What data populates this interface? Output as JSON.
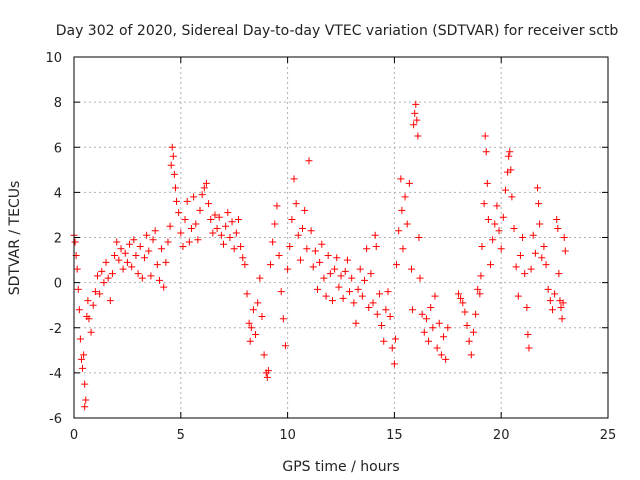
{
  "chart_data": {
    "type": "scatter",
    "title": "Day 302 of 2020, Sidereal Day-to-day VTEC variation (SDTVAR) for receiver sctb",
    "xlabel": "GPS time / hours",
    "ylabel": "SDTVAR / TECUs",
    "xlim": [
      0,
      25
    ],
    "ylim": [
      -6,
      10
    ],
    "x_ticks": [
      0,
      5,
      10,
      15,
      20,
      25
    ],
    "y_ticks": [
      -6,
      -4,
      -2,
      0,
      2,
      4,
      6,
      8,
      10
    ],
    "x_tick_labels": [
      "0",
      "5",
      "10",
      "15",
      "20",
      "25"
    ],
    "y_tick_labels": [
      "-6",
      "-4",
      "-2",
      "0",
      "2",
      "4",
      "6",
      "8",
      "10"
    ],
    "grid": true,
    "marker": "+",
    "series": [
      {
        "name": "SDTVAR sctb",
        "color": "#ff0000",
        "points": [
          [
            0.0,
            2.1
          ],
          [
            0.05,
            1.8
          ],
          [
            0.1,
            1.2
          ],
          [
            0.15,
            0.6
          ],
          [
            0.2,
            -0.3
          ],
          [
            0.25,
            -1.2
          ],
          [
            0.3,
            -2.5
          ],
          [
            0.35,
            -3.4
          ],
          [
            0.4,
            -3.8
          ],
          [
            0.45,
            -3.2
          ],
          [
            0.5,
            -4.5
          ],
          [
            0.5,
            -5.5
          ],
          [
            0.55,
            -5.2
          ],
          [
            0.6,
            -1.5
          ],
          [
            0.65,
            -0.8
          ],
          [
            0.7,
            -1.6
          ],
          [
            0.8,
            -2.2
          ],
          [
            0.9,
            -1.0
          ],
          [
            1.0,
            -0.4
          ],
          [
            1.1,
            0.3
          ],
          [
            1.2,
            -0.5
          ],
          [
            1.3,
            0.5
          ],
          [
            1.4,
            0.0
          ],
          [
            1.5,
            0.9
          ],
          [
            1.6,
            0.2
          ],
          [
            1.7,
            -0.8
          ],
          [
            1.8,
            0.4
          ],
          [
            1.9,
            1.2
          ],
          [
            2.0,
            1.8
          ],
          [
            2.1,
            1.0
          ],
          [
            2.2,
            1.5
          ],
          [
            2.3,
            0.6
          ],
          [
            2.4,
            1.3
          ],
          [
            2.5,
            0.9
          ],
          [
            2.6,
            1.7
          ],
          [
            2.7,
            0.7
          ],
          [
            2.8,
            1.9
          ],
          [
            2.9,
            1.2
          ],
          [
            3.0,
            0.4
          ],
          [
            3.1,
            1.6
          ],
          [
            3.2,
            0.2
          ],
          [
            3.3,
            1.1
          ],
          [
            3.4,
            2.1
          ],
          [
            3.5,
            1.4
          ],
          [
            3.6,
            0.3
          ],
          [
            3.7,
            1.9
          ],
          [
            3.8,
            2.3
          ],
          [
            3.9,
            0.8
          ],
          [
            4.0,
            0.1
          ],
          [
            4.1,
            1.5
          ],
          [
            4.2,
            -0.2
          ],
          [
            4.3,
            0.9
          ],
          [
            4.4,
            1.8
          ],
          [
            4.5,
            2.5
          ],
          [
            4.55,
            5.2
          ],
          [
            4.6,
            6.0
          ],
          [
            4.65,
            5.6
          ],
          [
            4.7,
            4.8
          ],
          [
            4.75,
            4.2
          ],
          [
            4.8,
            3.6
          ],
          [
            4.9,
            3.1
          ],
          [
            5.0,
            2.2
          ],
          [
            5.1,
            1.6
          ],
          [
            5.2,
            2.8
          ],
          [
            5.3,
            3.6
          ],
          [
            5.4,
            1.8
          ],
          [
            5.5,
            2.4
          ],
          [
            5.6,
            3.8
          ],
          [
            5.7,
            2.6
          ],
          [
            5.8,
            1.9
          ],
          [
            5.9,
            3.2
          ],
          [
            6.0,
            3.9
          ],
          [
            6.1,
            4.2
          ],
          [
            6.2,
            4.4
          ],
          [
            6.3,
            3.5
          ],
          [
            6.4,
            2.8
          ],
          [
            6.5,
            2.2
          ],
          [
            6.6,
            3.0
          ],
          [
            6.7,
            2.4
          ],
          [
            6.8,
            2.9
          ],
          [
            6.9,
            2.1
          ],
          [
            7.0,
            1.7
          ],
          [
            7.1,
            2.5
          ],
          [
            7.2,
            3.1
          ],
          [
            7.3,
            2.0
          ],
          [
            7.4,
            2.7
          ],
          [
            7.5,
            1.5
          ],
          [
            7.6,
            2.2
          ],
          [
            7.7,
            2.8
          ],
          [
            7.8,
            1.6
          ],
          [
            7.9,
            1.1
          ],
          [
            8.0,
            0.8
          ],
          [
            8.1,
            -0.5
          ],
          [
            8.2,
            -1.8
          ],
          [
            8.25,
            -2.6
          ],
          [
            8.3,
            -2.0
          ],
          [
            8.4,
            -1.2
          ],
          [
            8.5,
            -2.3
          ],
          [
            8.6,
            -0.9
          ],
          [
            8.7,
            0.2
          ],
          [
            8.8,
            -1.5
          ],
          [
            8.9,
            -3.2
          ],
          [
            9.0,
            -4.0
          ],
          [
            9.05,
            -4.2
          ],
          [
            9.1,
            -3.9
          ],
          [
            9.2,
            0.8
          ],
          [
            9.3,
            1.8
          ],
          [
            9.4,
            2.6
          ],
          [
            9.5,
            3.4
          ],
          [
            9.6,
            1.2
          ],
          [
            9.7,
            -0.4
          ],
          [
            9.8,
            -1.6
          ],
          [
            9.9,
            -2.8
          ],
          [
            10.0,
            0.6
          ],
          [
            10.1,
            1.6
          ],
          [
            10.2,
            2.8
          ],
          [
            10.3,
            4.6
          ],
          [
            10.4,
            3.5
          ],
          [
            10.5,
            2.1
          ],
          [
            10.6,
            1.0
          ],
          [
            10.7,
            2.4
          ],
          [
            10.8,
            3.2
          ],
          [
            10.9,
            1.5
          ],
          [
            11.0,
            5.4
          ],
          [
            11.1,
            2.3
          ],
          [
            11.2,
            0.7
          ],
          [
            11.3,
            1.4
          ],
          [
            11.4,
            -0.3
          ],
          [
            11.5,
            0.9
          ],
          [
            11.6,
            1.7
          ],
          [
            11.7,
            0.2
          ],
          [
            11.8,
            -0.6
          ],
          [
            11.9,
            1.2
          ],
          [
            12.0,
            0.4
          ],
          [
            12.1,
            -0.8
          ],
          [
            12.2,
            0.6
          ],
          [
            12.3,
            1.1
          ],
          [
            12.4,
            -0.2
          ],
          [
            12.5,
            0.3
          ],
          [
            12.6,
            -0.7
          ],
          [
            12.7,
            0.5
          ],
          [
            12.8,
            1.0
          ],
          [
            12.9,
            -0.4
          ],
          [
            13.0,
            0.2
          ],
          [
            13.1,
            -0.9
          ],
          [
            13.2,
            -1.8
          ],
          [
            13.3,
            -0.3
          ],
          [
            13.4,
            0.6
          ],
          [
            13.5,
            -0.6
          ],
          [
            13.6,
            0.1
          ],
          [
            13.7,
            1.5
          ],
          [
            13.8,
            -1.1
          ],
          [
            13.9,
            0.4
          ],
          [
            14.0,
            -0.9
          ],
          [
            14.1,
            2.1
          ],
          [
            14.15,
            1.6
          ],
          [
            14.2,
            -1.4
          ],
          [
            14.3,
            -0.5
          ],
          [
            14.4,
            -1.9
          ],
          [
            14.5,
            -2.6
          ],
          [
            14.6,
            -1.2
          ],
          [
            14.7,
            -0.4
          ],
          [
            14.8,
            -1.5
          ],
          [
            14.9,
            -2.9
          ],
          [
            15.0,
            -3.6
          ],
          [
            15.05,
            -2.5
          ],
          [
            15.1,
            0.8
          ],
          [
            15.2,
            2.3
          ],
          [
            15.3,
            4.6
          ],
          [
            15.35,
            3.2
          ],
          [
            15.4,
            1.5
          ],
          [
            15.5,
            3.8
          ],
          [
            15.6,
            2.6
          ],
          [
            15.7,
            4.4
          ],
          [
            15.8,
            0.6
          ],
          [
            15.85,
            -1.2
          ],
          [
            15.9,
            7.0
          ],
          [
            15.95,
            7.5
          ],
          [
            16.0,
            7.9
          ],
          [
            16.05,
            7.2
          ],
          [
            16.1,
            6.5
          ],
          [
            16.15,
            2.0
          ],
          [
            16.2,
            0.2
          ],
          [
            16.3,
            -1.4
          ],
          [
            16.4,
            -2.2
          ],
          [
            16.5,
            -1.6
          ],
          [
            16.6,
            -2.6
          ],
          [
            16.7,
            -1.1
          ],
          [
            16.8,
            -2.0
          ],
          [
            16.9,
            -0.6
          ],
          [
            17.0,
            -2.9
          ],
          [
            17.1,
            -1.8
          ],
          [
            17.2,
            -3.2
          ],
          [
            17.3,
            -2.4
          ],
          [
            17.4,
            -3.4
          ],
          [
            17.5,
            -2.0
          ],
          [
            18.0,
            -0.5
          ],
          [
            18.1,
            -0.7
          ],
          [
            18.2,
            -0.9
          ],
          [
            18.3,
            -1.3
          ],
          [
            18.4,
            -1.9
          ],
          [
            18.5,
            -2.6
          ],
          [
            18.6,
            -3.2
          ],
          [
            18.7,
            -2.2
          ],
          [
            18.8,
            -1.4
          ],
          [
            18.9,
            -0.3
          ],
          [
            19.0,
            -0.5
          ],
          [
            19.05,
            0.3
          ],
          [
            19.1,
            1.6
          ],
          [
            19.2,
            3.5
          ],
          [
            19.25,
            6.5
          ],
          [
            19.3,
            5.8
          ],
          [
            19.35,
            4.4
          ],
          [
            19.4,
            2.8
          ],
          [
            19.5,
            0.8
          ],
          [
            19.6,
            1.9
          ],
          [
            19.7,
            2.6
          ],
          [
            19.8,
            3.4
          ],
          [
            19.9,
            2.3
          ],
          [
            20.0,
            1.5
          ],
          [
            20.1,
            2.9
          ],
          [
            20.2,
            4.1
          ],
          [
            20.3,
            4.9
          ],
          [
            20.35,
            5.6
          ],
          [
            20.4,
            5.8
          ],
          [
            20.45,
            5.0
          ],
          [
            20.5,
            3.8
          ],
          [
            20.6,
            2.4
          ],
          [
            20.7,
            0.7
          ],
          [
            20.8,
            -0.6
          ],
          [
            20.9,
            1.2
          ],
          [
            21.0,
            2.0
          ],
          [
            21.1,
            0.4
          ],
          [
            21.2,
            -1.1
          ],
          [
            21.25,
            -2.3
          ],
          [
            21.3,
            -2.9
          ],
          [
            21.4,
            0.6
          ],
          [
            21.5,
            2.1
          ],
          [
            21.6,
            1.3
          ],
          [
            21.7,
            4.2
          ],
          [
            21.75,
            3.5
          ],
          [
            21.8,
            2.6
          ],
          [
            21.9,
            1.1
          ],
          [
            22.0,
            1.6
          ],
          [
            22.1,
            0.8
          ],
          [
            22.2,
            -0.3
          ],
          [
            22.3,
            -0.8
          ],
          [
            22.4,
            -1.2
          ],
          [
            22.5,
            -0.5
          ],
          [
            22.6,
            2.8
          ],
          [
            22.65,
            2.4
          ],
          [
            22.7,
            0.4
          ],
          [
            22.75,
            -0.8
          ],
          [
            22.8,
            -1.1
          ],
          [
            22.85,
            -1.6
          ],
          [
            22.9,
            -0.9
          ],
          [
            22.95,
            2.0
          ],
          [
            23.0,
            1.4
          ]
        ]
      }
    ]
  }
}
